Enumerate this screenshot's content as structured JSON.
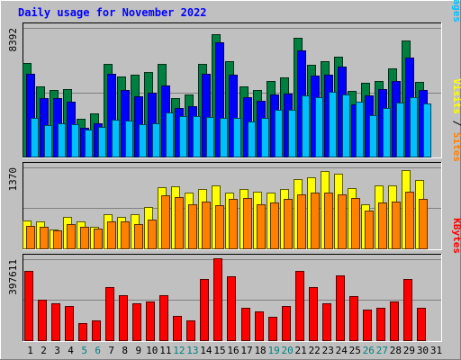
{
  "chart_data": {
    "type": "bar",
    "title": "Daily usage for November 2022",
    "categories": [
      "1",
      "2",
      "3",
      "4",
      "5",
      "6",
      "7",
      "8",
      "9",
      "10",
      "11",
      "12",
      "13",
      "14",
      "15",
      "16",
      "17",
      "18",
      "19",
      "20",
      "21",
      "22",
      "23",
      "24",
      "25",
      "26",
      "27",
      "28",
      "29",
      "30",
      "31"
    ],
    "weekend_days": [
      5,
      6,
      12,
      13,
      19,
      20,
      26,
      27
    ],
    "panels": [
      {
        "name": "hits",
        "axis_max_label": "8392",
        "ylim": [
          0,
          8392
        ],
        "right_labels": [
          "Pages",
          "Files",
          "Hits"
        ],
        "series": [
          {
            "name": "Hits",
            "color": "#008040",
            "values": [
              6090,
              4570,
              4320,
              4380,
              2460,
              2840,
              6050,
              5200,
              5350,
              5500,
              6020,
              3790,
              4040,
              6040,
              8000,
              6200,
              4560,
              4330,
              4920,
              5180,
              7760,
              5990,
              6240,
              6500,
              4260,
              4790,
              4920,
              5740,
              7580,
              4880,
              0
            ]
          },
          {
            "name": "Files",
            "color": "#0000ff",
            "values": [
              5400,
              3840,
              3790,
              3590,
              1880,
              2150,
              5400,
              4320,
              3910,
              4170,
              4640,
              3150,
              3300,
              5400,
              7460,
              5360,
              3850,
              3640,
              4040,
              4110,
              6900,
              5300,
              5350,
              5880,
              3420,
              3970,
              4400,
              4950,
              6440,
              4330,
              0
            ]
          },
          {
            "name": "Pages",
            "color": "#00c0ff",
            "values": [
              2530,
              2050,
              2150,
              2110,
              1750,
              1910,
              2420,
              2370,
              2120,
              2180,
              2880,
              2660,
              2620,
              2570,
              2510,
              2510,
              2300,
              2510,
              3040,
              3060,
              3990,
              3870,
              4220,
              4040,
              3600,
              2720,
              3160,
              3550,
              3890,
              3450,
              0
            ]
          }
        ]
      },
      {
        "name": "visits",
        "axis_max_label": "1370",
        "ylim": [
          0,
          1370
        ],
        "right_labels": [
          "Sites",
          "Visits"
        ],
        "series": [
          {
            "name": "Visits",
            "color": "#ffff00",
            "values": [
              470,
              450,
              320,
              530,
              460,
              370,
              580,
              530,
              580,
              700,
              1030,
              1050,
              950,
              1000,
              1070,
              950,
              1000,
              960,
              950,
              1000,
              1170,
              1210,
              1310,
              1270,
              1020,
              750,
              1070,
              1070,
              1330,
              1150,
              0
            ]
          },
          {
            "name": "Sites",
            "color": "#ff8000",
            "values": [
              380,
              370,
              300,
              410,
              360,
              340,
              450,
              460,
              410,
              480,
              900,
              870,
              750,
              790,
              730,
              830,
              850,
              750,
              770,
              830,
              920,
              940,
              950,
              920,
              850,
              640,
              770,
              790,
              960,
              830,
              0
            ]
          }
        ]
      },
      {
        "name": "kbytes",
        "axis_max_label": "397611",
        "ylim": [
          0,
          397611
        ],
        "right_labels": [
          "KBytes"
        ],
        "series": [
          {
            "name": "KBytes",
            "color": "#ff0000",
            "values": [
              340000,
              200000,
              181000,
              166000,
              86000,
              96000,
              262000,
              223000,
              181000,
              191000,
              223000,
              121000,
              96000,
              302000,
              400000,
              314000,
              160000,
              141000,
              117000,
              166000,
              340000,
              259000,
              181000,
              318000,
              218000,
              151000,
              160000,
              189000,
              302000,
              160000,
              0
            ]
          }
        ]
      }
    ]
  }
}
